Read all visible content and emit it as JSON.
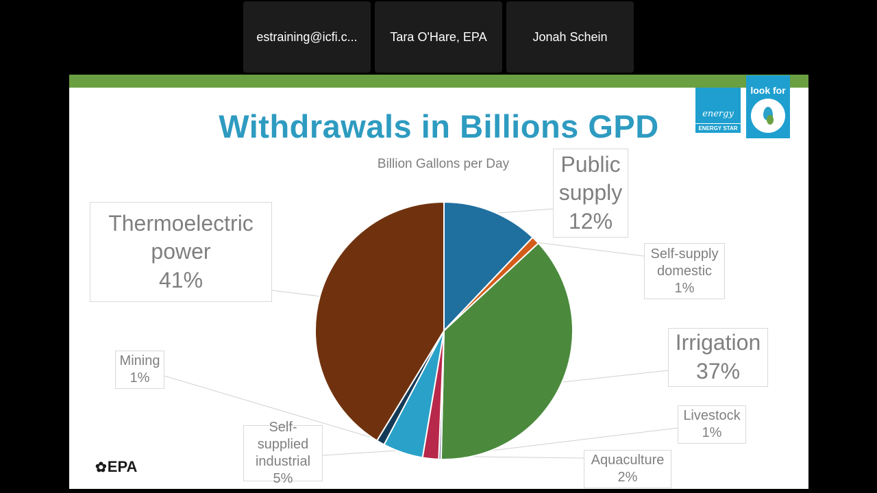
{
  "participants": [
    {
      "name": "estraining@icfi.c..."
    },
    {
      "name": "Tara O'Hare, EPA"
    },
    {
      "name": "Jonah Schein"
    }
  ],
  "slide": {
    "title": "Withdrawals in Billions GPD",
    "logos": {
      "energy_star_script": "energy",
      "energy_star_text": "ENERGY STAR",
      "watersense_top": "look for",
      "epa": "EPA"
    }
  },
  "chart_data": {
    "type": "pie",
    "title": "Billion Gallons per Day",
    "start_angle_deg": 0,
    "direction": "clockwise",
    "slices": [
      {
        "label": [
          "Public",
          "supply"
        ],
        "value": 12,
        "pct": "12%",
        "color": "#1f6f9f"
      },
      {
        "label": [
          "Self-supply",
          "domestic"
        ],
        "value": 1,
        "pct": "1%",
        "color": "#d35c1a"
      },
      {
        "label": [
          "Irrigation"
        ],
        "value": 37,
        "pct": "37%",
        "color": "#4b8a3d"
      },
      {
        "label": [
          "Livestock"
        ],
        "value": 0.3,
        "pct": "1%",
        "color": "#8a8aa8"
      },
      {
        "label": [
          "Aquaculture"
        ],
        "value": 2,
        "pct": "2%",
        "color": "#b8284a"
      },
      {
        "label": [
          "Self-supplied",
          "industrial"
        ],
        "value": 5,
        "pct": "5%",
        "color": "#2aa1c9"
      },
      {
        "label": [
          "Mining"
        ],
        "value": 1,
        "pct": "1%",
        "color": "#143a57"
      },
      {
        "label": [
          "Thermoelectric",
          "power"
        ],
        "value": 41,
        "pct": "41%",
        "color": "#70320e"
      }
    ]
  }
}
